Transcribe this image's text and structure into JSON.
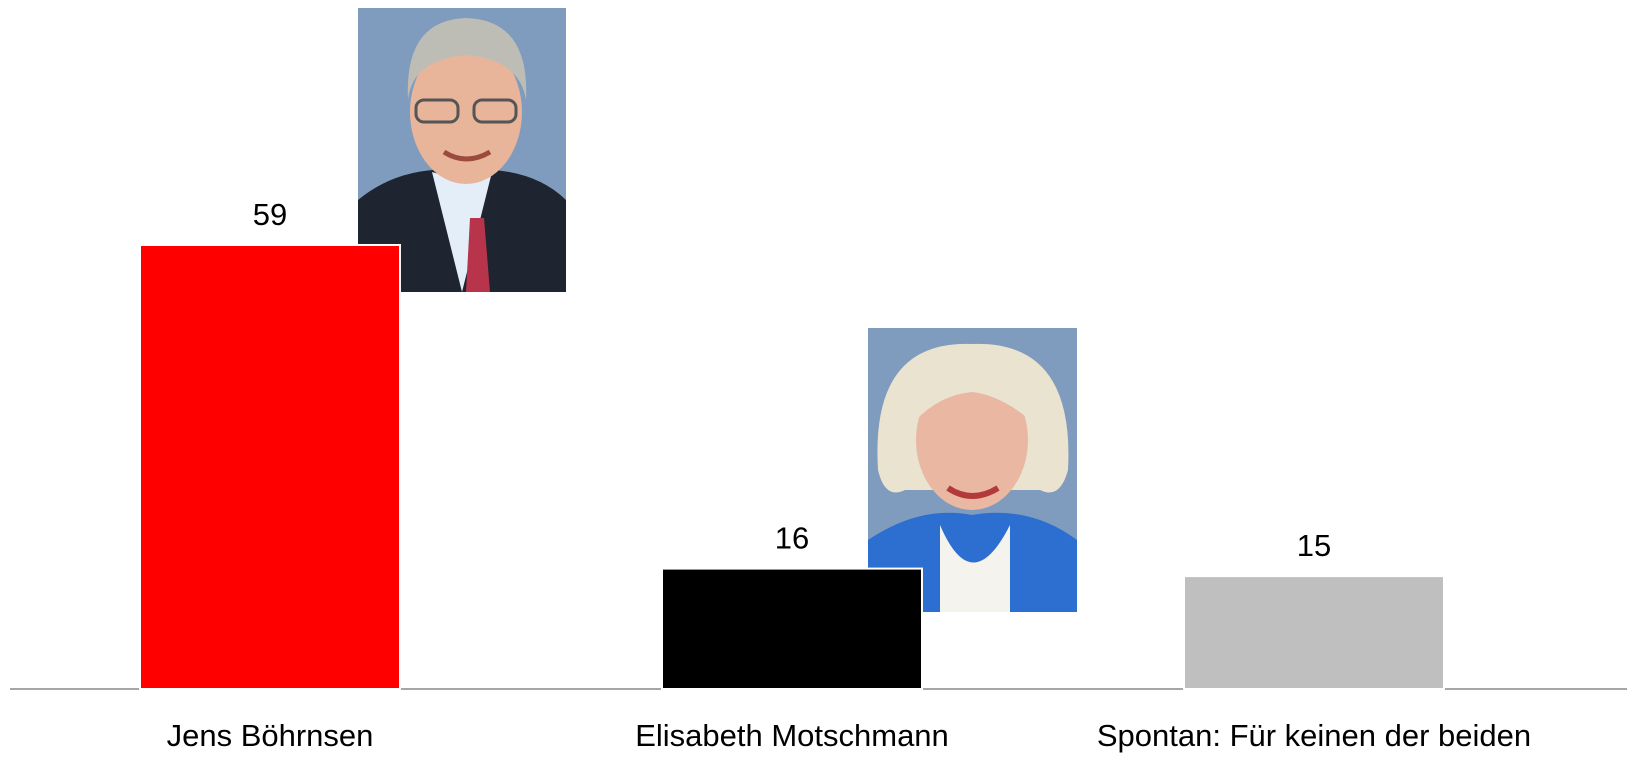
{
  "chart_data": {
    "type": "bar",
    "categories": [
      "Jens Böhrnsen",
      "Elisabeth Motschmann",
      "Spontan: Für keinen der beiden"
    ],
    "values": [
      59,
      16,
      15
    ],
    "colors": [
      "#ff0000",
      "#000000",
      "#bfbfbf"
    ]
  }
}
